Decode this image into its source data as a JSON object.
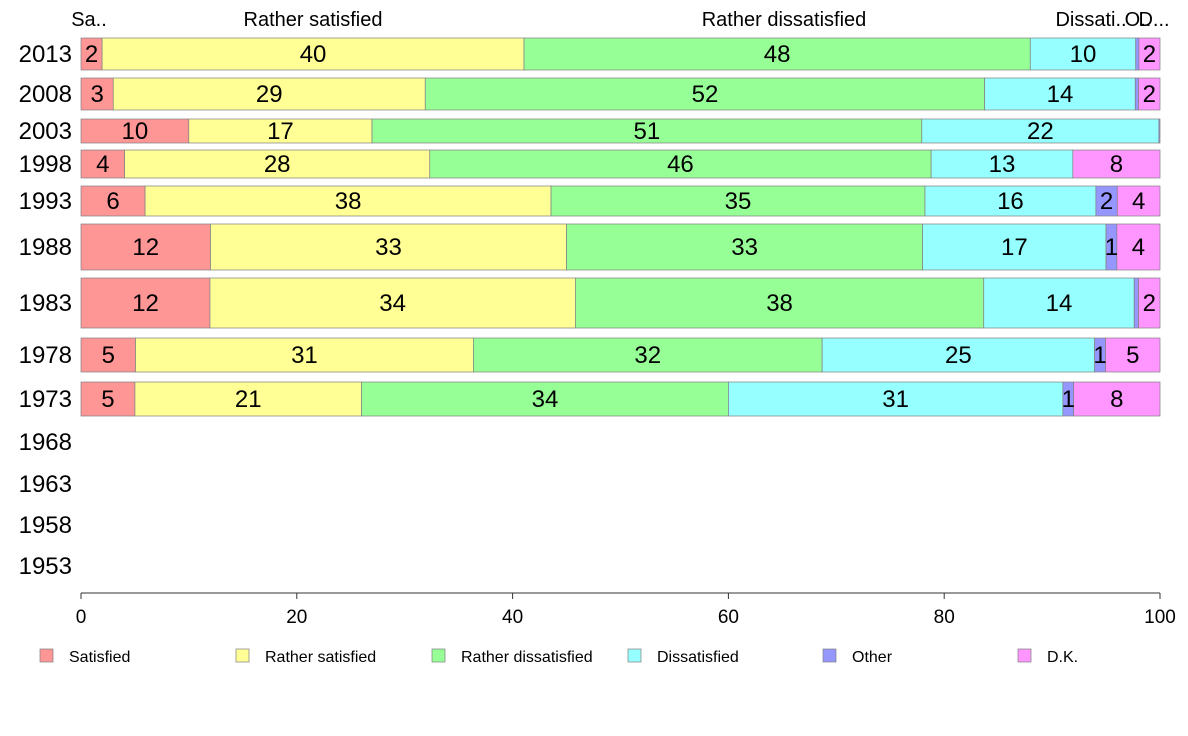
{
  "chart_data": {
    "type": "bar",
    "orientation": "horizontal",
    "stacked": true,
    "categories": [
      "2013",
      "2008",
      "2003",
      "1998",
      "1993",
      "1988",
      "1983",
      "1978",
      "1973",
      "1968",
      "1963",
      "1958",
      "1953"
    ],
    "series": [
      {
        "name": "Satisfied",
        "color": "#ff9696",
        "values": [
          2,
          3,
          10,
          4,
          6,
          12,
          12,
          5,
          5,
          null,
          null,
          null,
          null
        ]
      },
      {
        "name": "Rather satisfied",
        "color": "#ffff96",
        "values": [
          40,
          29,
          17,
          28,
          38,
          33,
          34,
          31,
          21,
          null,
          null,
          null,
          null
        ]
      },
      {
        "name": "Rather dissatisfied",
        "color": "#96ff96",
        "values": [
          48,
          52,
          51,
          46,
          35,
          33,
          38,
          32,
          34,
          null,
          null,
          null,
          null
        ]
      },
      {
        "name": "Dissatisfied",
        "color": "#96ffff",
        "values": [
          10,
          14,
          22,
          13,
          16,
          17,
          14,
          25,
          31,
          null,
          null,
          null,
          null
        ]
      },
      {
        "name": "Other",
        "color": "#9696ff",
        "values": [
          0.3,
          0.3,
          0.1,
          0,
          2,
          1,
          0.4,
          1,
          1,
          null,
          null,
          null,
          null
        ]
      },
      {
        "name": "D.K.",
        "color": "#ff96ff",
        "values": [
          2,
          2,
          0,
          8,
          4,
          4,
          2,
          5,
          8,
          null,
          null,
          null,
          null
        ]
      }
    ],
    "bar_labels": [
      [
        "2",
        "40",
        "48",
        "10",
        "",
        "2"
      ],
      [
        "3",
        "29",
        "52",
        "14",
        "",
        "2"
      ],
      [
        "10",
        "17",
        "51",
        "22",
        "",
        ""
      ],
      [
        "4",
        "28",
        "46",
        "13",
        "",
        "8"
      ],
      [
        "6",
        "38",
        "35",
        "16",
        "2",
        "4"
      ],
      [
        "12",
        "33",
        "33",
        "17",
        "1",
        "4"
      ],
      [
        "12",
        "34",
        "38",
        "14",
        "",
        "2"
      ],
      [
        "5",
        "31",
        "32",
        "25",
        "1",
        "5"
      ],
      [
        "5",
        "21",
        "34",
        "31",
        "1",
        "8"
      ]
    ],
    "top_labels": [
      "Sa..",
      "Rather satisfied",
      "Rather dissatisfied",
      "Dissati..",
      "O..",
      "D..."
    ],
    "xlim": [
      0,
      100
    ],
    "xticks": [
      "0",
      "20",
      "40",
      "60",
      "80",
      "100"
    ],
    "legend_position": "bottom",
    "grid": false
  }
}
